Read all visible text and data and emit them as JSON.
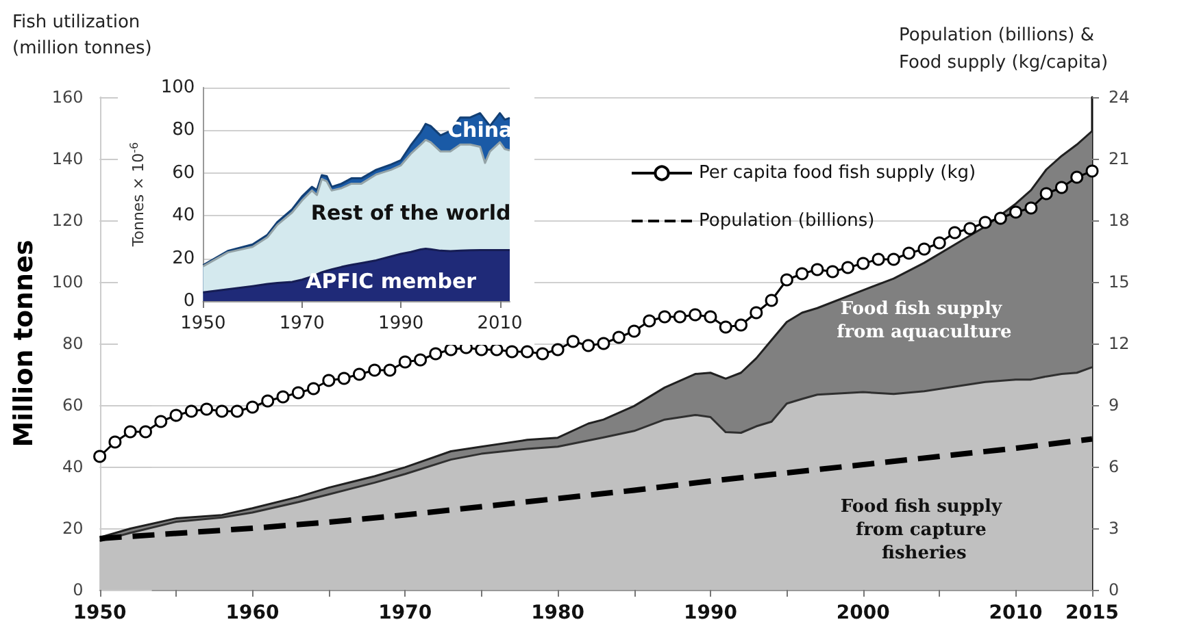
{
  "chart_data": [
    {
      "type": "area",
      "title": "Fish utilization (million tonnes)",
      "ylabel": "Million tonnes",
      "y2label": "Population (billions) & Food supply (kg/capita)",
      "x": [
        1950,
        1952,
        1955,
        1958,
        1960,
        1963,
        1965,
        1968,
        1970,
        1973,
        1975,
        1978,
        1980,
        1982,
        1983,
        1985,
        1987,
        1989,
        1990,
        1991,
        1992,
        1993,
        1994,
        1995,
        1996,
        1997,
        2000,
        2002,
        2004,
        2006,
        2008,
        2010,
        2011,
        2012,
        2013,
        2014,
        2015
      ],
      "stacked": true,
      "series": [
        {
          "name": "Food fish supply from capture fisheries",
          "color": "#c0c0c0",
          "values": [
            15.8,
            18.5,
            22.1,
            23.5,
            25.1,
            28.5,
            31.0,
            34.8,
            37.6,
            42.3,
            44.2,
            45.8,
            46.5,
            48.5,
            49.5,
            51.6,
            55.3,
            56.8,
            56.1,
            51.2,
            51.0,
            53.1,
            54.6,
            60.5,
            62.0,
            63.4,
            64.2,
            63.6,
            64.5,
            66.0,
            67.5,
            68.3,
            68.3,
            69.3,
            70.1,
            70.5,
            72.3
          ]
        },
        {
          "name": "Food fish supply from aquaculture",
          "color": "#808080",
          "values": [
            1.2,
            1.4,
            1.1,
            0.8,
            1.4,
            1.7,
            2.2,
            2.1,
            2.2,
            2.7,
            2.3,
            2.9,
            2.9,
            5.5,
            5.8,
            8.1,
            10.4,
            13.3,
            14.4,
            17.4,
            19.5,
            22.1,
            26.5,
            26.5,
            28.0,
            28.1,
            33.1,
            37.5,
            41.7,
            46.1,
            50.5,
            57.1,
            61.5,
            67.2,
            70.8,
            74.1,
            76.7
          ]
        },
        {
          "name": "Per capita food fish supply (kg)",
          "type": "line",
          "axis": "y2",
          "color": "#000000",
          "marker": "circle",
          "line_style": "solid",
          "x": [
            1950,
            1951,
            1952,
            1953,
            1954,
            1955,
            1956,
            1957,
            1958,
            1959,
            1960,
            1961,
            1962,
            1963,
            1964,
            1965,
            1966,
            1967,
            1968,
            1969,
            1970,
            1971,
            1972,
            1973,
            1974,
            1975,
            1976,
            1977,
            1978,
            1979,
            1980,
            1981,
            1982,
            1983,
            1984,
            1985,
            1986,
            1987,
            1988,
            1989,
            1990,
            1991,
            1992,
            1993,
            1994,
            1995,
            1996,
            1997,
            1998,
            1999,
            2000,
            2001,
            2002,
            2003,
            2004,
            2005,
            2006,
            2007,
            2008,
            2009,
            2010,
            2011,
            2012,
            2013,
            2014,
            2015
          ],
          "values": [
            6.5,
            7.2,
            7.7,
            7.7,
            8.2,
            8.5,
            8.7,
            8.8,
            8.7,
            8.7,
            8.9,
            9.2,
            9.4,
            9.6,
            9.8,
            10.2,
            10.3,
            10.5,
            10.7,
            10.7,
            11.1,
            11.2,
            11.5,
            11.7,
            11.8,
            11.7,
            11.7,
            11.6,
            11.6,
            11.5,
            11.7,
            12.1,
            11.9,
            12.0,
            12.3,
            12.6,
            13.1,
            13.3,
            13.3,
            13.4,
            13.3,
            12.8,
            12.9,
            13.5,
            14.1,
            15.1,
            15.4,
            15.6,
            15.5,
            15.7,
            15.9,
            16.1,
            16.1,
            16.4,
            16.6,
            16.9,
            17.4,
            17.6,
            17.9,
            18.1,
            18.4,
            18.6,
            19.3,
            19.6,
            20.1,
            20.4
          ]
        },
        {
          "name": "Population (billions)",
          "type": "line",
          "axis": "y2",
          "color": "#000000",
          "marker": "none",
          "line_style": "dashed",
          "x": [
            1950,
            1955,
            1960,
            1965,
            1970,
            1975,
            1980,
            1985,
            1990,
            1995,
            2000,
            2005,
            2010,
            2015
          ],
          "values": [
            2.5,
            2.75,
            3.0,
            3.3,
            3.65,
            4.05,
            4.45,
            4.85,
            5.3,
            5.7,
            6.1,
            6.5,
            6.9,
            7.35
          ]
        }
      ],
      "xlim": [
        1950,
        2015
      ],
      "xticks": [
        1950,
        {
          "value": 1955,
          "label": null
        },
        1960,
        {
          "value": 1965,
          "label": null
        },
        1970,
        {
          "value": 1975,
          "label": null
        },
        1980,
        {
          "value": 1985,
          "label": null
        },
        1990,
        {
          "value": 1995,
          "label": null
        },
        2000,
        {
          "value": 2005,
          "label": null
        },
        2010,
        2015
      ],
      "ylim": [
        0,
        160
      ],
      "yticks": [
        0,
        20,
        40,
        60,
        80,
        100,
        120,
        140,
        160
      ],
      "y2lim": [
        0,
        24
      ],
      "y2ticks": [
        0,
        3,
        6,
        9,
        12,
        15,
        18,
        21,
        24
      ],
      "grid": "y",
      "legend": "top"
    },
    {
      "type": "area",
      "ylabel": "Tonnes × 10$^{-6}$",
      "x": [
        1950,
        1955,
        1960,
        1963,
        1965,
        1968,
        1970,
        1972,
        1973,
        1974,
        1975,
        1976,
        1978,
        1980,
        1982,
        1985,
        1988,
        1990,
        1992,
        1994,
        1995,
        1996,
        1998,
        2000,
        2002,
        2004,
        2006,
        2007,
        2008,
        2010,
        2011,
        2012
      ],
      "stacked": true,
      "series": [
        {
          "name": "APFIC member",
          "color": "#1f2a78",
          "values": [
            4.1,
            5.5,
            7.0,
            8.0,
            8.5,
            9.0,
            10.0,
            11.5,
            12.5,
            13.5,
            14.2,
            14.8,
            16.0,
            17.0,
            17.8,
            19.1,
            20.9,
            22.1,
            23.0,
            24.2,
            24.5,
            24.3,
            23.6,
            23.4,
            23.6,
            23.8,
            23.9,
            23.9,
            23.9,
            23.9,
            23.9,
            23.9
          ]
        },
        {
          "name": "Rest of the world",
          "color": "#d4e9ee",
          "values": [
            12.2,
            17.3,
            18.4,
            21.9,
            27.2,
            32.5,
            37.1,
            40.3,
            37.2,
            43.7,
            41.9,
            37.0,
            36.9,
            38.0,
            37.2,
            40.2,
            40.6,
            41.5,
            46.0,
            49.1,
            51.0,
            50.1,
            46.5,
            46.7,
            49.7,
            49.5,
            48.4,
            40.8,
            46.2,
            50.5,
            47.3,
            46.7
          ]
        },
        {
          "name": "China",
          "color": "#1a5aa6",
          "values": [
            0.5,
            0.7,
            1.1,
            1.1,
            1.3,
            1.5,
            1.9,
            1.7,
            2.3,
            1.8,
            2.4,
            1.7,
            2.1,
            2.5,
            2.5,
            2.2,
            2.5,
            2.4,
            4.0,
            5.7,
            7.5,
            7.6,
            7.5,
            9.6,
            12.7,
            12.7,
            15.7,
            20.3,
            11.9,
            13.6,
            13.8,
            15.2
          ]
        }
      ],
      "xlim": [
        1950,
        2012
      ],
      "xticks": [
        1950,
        1970,
        1990,
        2010
      ],
      "ylim": [
        0,
        100
      ],
      "yticks": [
        0,
        20,
        40,
        60,
        80,
        100
      ],
      "grid": "y"
    }
  ]
}
